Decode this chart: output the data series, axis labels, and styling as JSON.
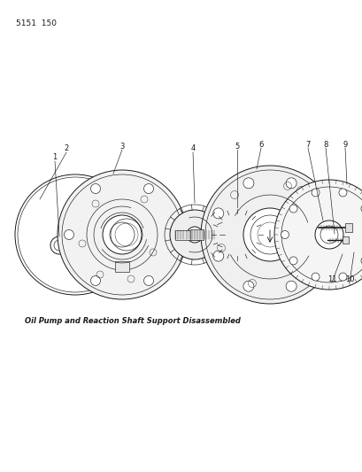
{
  "background_color": "#ffffff",
  "page_number": "5151  150",
  "caption": "Oil Pump and Reaction Shaft Support Disassembled",
  "page_num_fontsize": 6.5,
  "caption_fontsize": 6.0,
  "line_color": "#1a1a1a"
}
